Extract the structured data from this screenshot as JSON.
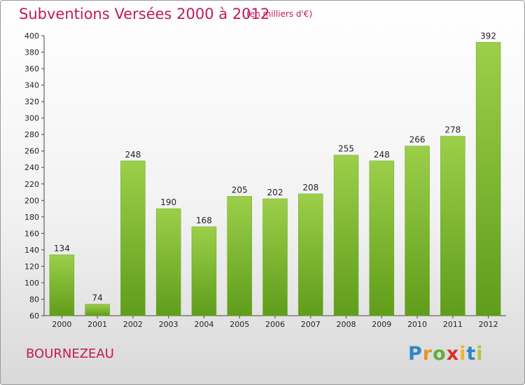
{
  "header": {
    "title": "Subventions Versées 2000 à 2012",
    "subtitle": "(en milliers d'€)"
  },
  "footer": {
    "commune": "BOURNEZEAU",
    "logo_text": "Proxiti"
  },
  "chart_data": {
    "type": "bar",
    "title": "Subventions Versées 2000 à 2012",
    "subtitle": "(en milliers d'€)",
    "categories": [
      "2000",
      "2001",
      "2002",
      "2003",
      "2004",
      "2005",
      "2006",
      "2007",
      "2008",
      "2009",
      "2010",
      "2011",
      "2012"
    ],
    "values": [
      134,
      74,
      248,
      190,
      168,
      205,
      202,
      208,
      255,
      248,
      266,
      278,
      392
    ],
    "ylim": [
      60,
      400
    ],
    "yticks": [
      60,
      80,
      100,
      120,
      140,
      160,
      180,
      200,
      220,
      240,
      260,
      280,
      300,
      320,
      340,
      360,
      380,
      400
    ],
    "grid": false,
    "bar_color_top": "#9ccf4a",
    "bar_color_bottom": "#5f9d1a"
  }
}
